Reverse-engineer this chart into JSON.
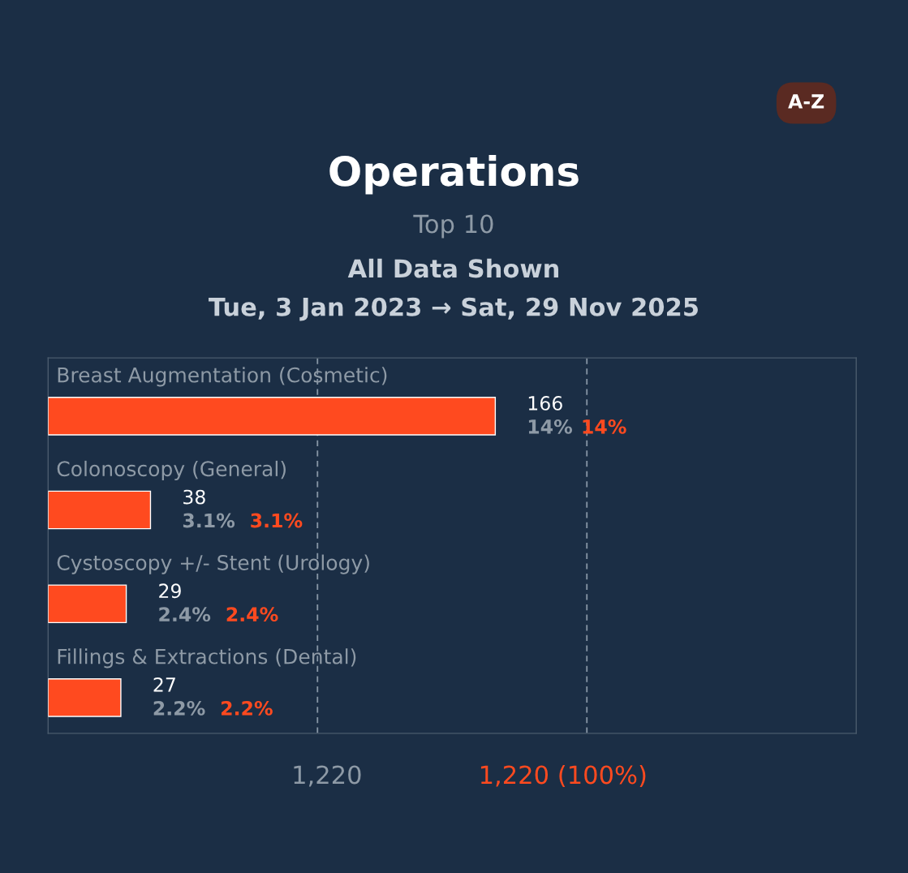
{
  "chart_data": {
    "type": "bar",
    "orientation": "horizontal",
    "title": "Operations",
    "subtitle": "Top 10",
    "categories": [
      "Breast Augmentation (Cosmetic)",
      "Colonoscopy (General)",
      "Cystoscopy +/- Stent (Urology)",
      "Fillings & Extractions (Dental)"
    ],
    "series": [
      {
        "color": "#ff4a1f",
        "values": [
          166,
          38,
          29,
          27
        ]
      }
    ],
    "data_labels": true,
    "xlim": [
      0,
      300
    ],
    "ref_lines": [
      {
        "axis": "x",
        "value": 100,
        "color": "#8796a6",
        "line_style": "dashed"
      },
      {
        "axis": "x",
        "value": 200,
        "color": "#8796a6",
        "line_style": "dashed"
      }
    ],
    "annotations": [
      "All Data Shown",
      "Tue, 3 Jan 2023 → Sat, 29 Nov 2025",
      "A-Z",
      "1,220",
      "1,220 (100%)",
      "14%",
      "14%",
      "3.1%",
      "3.1%",
      "2.4%",
      "2.4%",
      "2.2%",
      "2.2%"
    ]
  }
}
